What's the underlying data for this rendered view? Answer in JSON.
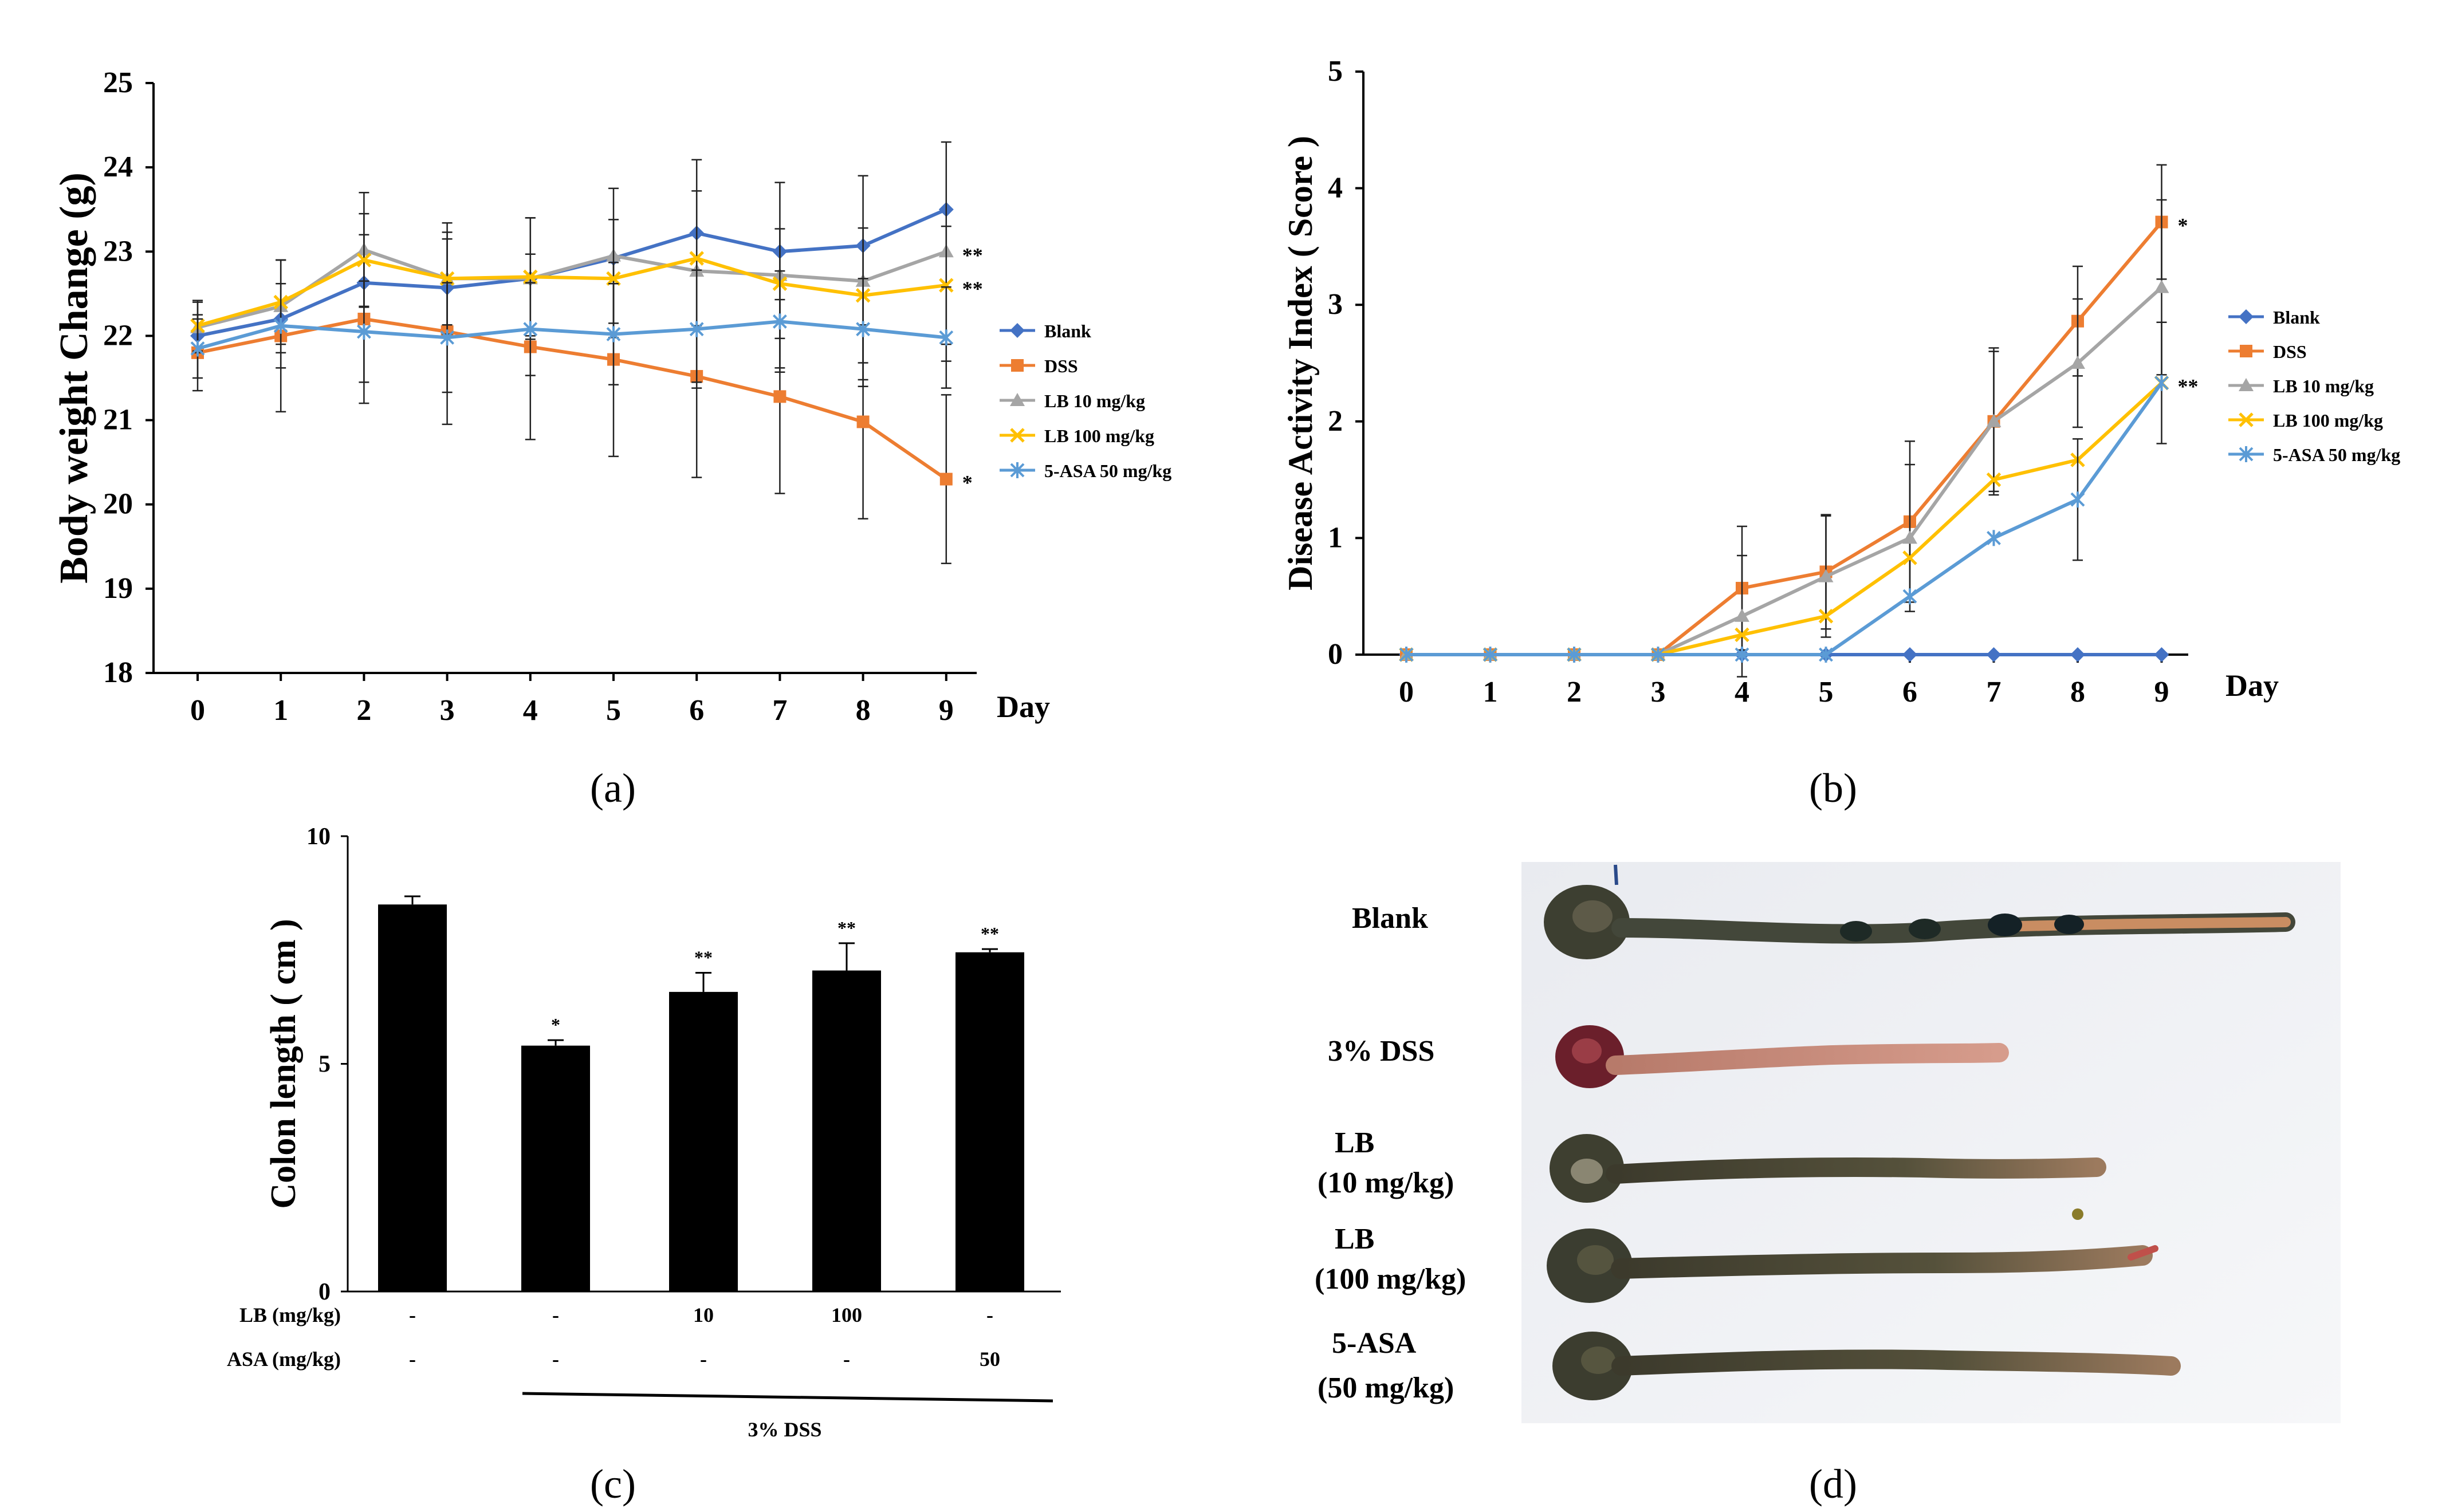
{
  "chart_data": [
    {
      "panel": "a",
      "type": "line",
      "panel_label": "(a)",
      "ylabel": "Body weight Change (g)",
      "xlabel": "Day",
      "ylim": [
        18,
        25
      ],
      "yticks": [
        18,
        19,
        20,
        21,
        22,
        23,
        24,
        25
      ],
      "x": [
        0,
        1,
        2,
        3,
        4,
        5,
        6,
        7,
        8,
        9
      ],
      "series": [
        {
          "name": "Blank",
          "color": "#4472C4",
          "marker": "diamond",
          "values": [
            22.0,
            22.2,
            22.63,
            22.57,
            22.68,
            22.92,
            23.22,
            23.0,
            23.07,
            23.5
          ],
          "errors": [
            0,
            0,
            0,
            0,
            0,
            0,
            0,
            0,
            0,
            0
          ]
        },
        {
          "name": "DSS",
          "color": "#ED7D31",
          "marker": "square",
          "values": [
            21.8,
            22.0,
            22.2,
            22.05,
            21.87,
            21.72,
            21.52,
            21.28,
            20.98,
            20.3
          ],
          "errors": [
            0.45,
            0.9,
            1.0,
            1.1,
            1.1,
            1.15,
            1.2,
            1.15,
            1.15,
            1.0
          ]
        },
        {
          "name": "LB 10 mg/kg",
          "color": "#A5A5A5",
          "marker": "triangle",
          "values": [
            22.1,
            22.35,
            23.02,
            22.68,
            22.68,
            22.95,
            22.77,
            22.72,
            22.65,
            23.0
          ],
          "errors": [
            0.3,
            0.55,
            0.68,
            0.66,
            0.72,
            0.8,
            1.32,
            1.1,
            1.25,
            1.3
          ]
        },
        {
          "name": "LB 100 mg/kg",
          "color": "#FFC000",
          "marker": "x",
          "values": [
            22.12,
            22.4,
            22.9,
            22.68,
            22.7,
            22.68,
            22.92,
            22.62,
            22.48,
            22.6
          ],
          "errors": [
            0.3,
            0.5,
            0.55,
            0.55,
            0.7,
            0.7,
            0.8,
            0.65,
            0.8,
            0.7
          ]
        },
        {
          "name": "5-ASA 50 mg/kg",
          "color": "#5B9BD5",
          "marker": "star",
          "values": [
            21.85,
            22.12,
            22.05,
            21.98,
            22.08,
            22.02,
            22.08,
            22.17,
            22.08,
            21.98
          ],
          "errors": [
            0.35,
            0.5,
            0.6,
            0.65,
            0.55,
            0.6,
            0.7,
            0.6,
            0.6,
            0.6
          ]
        }
      ],
      "annotations": [
        {
          "text": "**",
          "series": "LB 10 mg/kg"
        },
        {
          "text": "**",
          "series": "LB 100 mg/kg"
        },
        {
          "text": "*",
          "series": "DSS"
        }
      ],
      "legend": [
        "Blank",
        "DSS",
        "LB 10 mg/kg",
        "LB 100 mg/kg",
        "5-ASA 50 mg/kg"
      ],
      "legend_position": "right"
    },
    {
      "panel": "b",
      "type": "line",
      "panel_label": "(b)",
      "ylabel": "Disease Activity Index ( Score )",
      "xlabel": "Day",
      "ylim": [
        0,
        5
      ],
      "yticks": [
        0,
        1,
        2,
        3,
        4,
        5
      ],
      "x": [
        0,
        1,
        2,
        3,
        4,
        5,
        6,
        7,
        8,
        9
      ],
      "series": [
        {
          "name": "Blank",
          "color": "#4472C4",
          "marker": "diamond",
          "values": [
            0,
            0,
            0,
            0,
            0,
            0,
            0,
            0,
            0,
            0
          ],
          "errors": [
            0,
            0,
            0,
            0,
            0,
            0,
            0,
            0,
            0,
            0
          ]
        },
        {
          "name": "DSS",
          "color": "#ED7D31",
          "marker": "square",
          "values": [
            0,
            0,
            0,
            0,
            0.57,
            0.71,
            1.14,
            2.0,
            2.86,
            3.71
          ],
          "errors": [
            0,
            0,
            0,
            0,
            0.53,
            0.49,
            0.69,
            0.63,
            0.47,
            0.49
          ]
        },
        {
          "name": "LB 10 mg/kg",
          "color": "#A5A5A5",
          "marker": "triangle",
          "values": [
            0,
            0,
            0,
            0,
            0.33,
            0.67,
            1.0,
            2.0,
            2.5,
            3.15
          ],
          "errors": [
            0,
            0,
            0,
            0,
            0.52,
            0.52,
            0.63,
            0.6,
            0.55,
            0.75
          ]
        },
        {
          "name": "LB 100 mg/kg",
          "color": "#FFC000",
          "marker": "x",
          "values": [
            0,
            0,
            0,
            0,
            0.17,
            0.33,
            0.83,
            1.5,
            1.67,
            2.33
          ],
          "errors": [
            0,
            0,
            0,
            0,
            0,
            0,
            0,
            0,
            0,
            0
          ]
        },
        {
          "name": "5-ASA 50 mg/kg",
          "color": "#5B9BD5",
          "marker": "star",
          "values": [
            0,
            0,
            0,
            0,
            0,
            0,
            0.5,
            1.0,
            1.33,
            2.33
          ],
          "errors": [
            0,
            0,
            0,
            0,
            0,
            0,
            0,
            0,
            0.52,
            0.52
          ]
        }
      ],
      "annotations": [
        {
          "text": "*",
          "series": "DSS"
        },
        {
          "text": "**",
          "series": "5-ASA 50 mg/kg"
        }
      ],
      "legend": [
        "Blank",
        "DSS",
        "LB 10 mg/kg",
        "LB 100 mg/kg",
        "5-ASA 50 mg/kg"
      ],
      "legend_position": "right"
    },
    {
      "panel": "c",
      "type": "bar",
      "panel_label": "(c)",
      "ylabel": "Colon length ( cm )",
      "ylim": [
        0,
        10
      ],
      "yticks": [
        0,
        5,
        10
      ],
      "values": [
        8.5,
        5.4,
        6.58,
        7.05,
        7.45
      ],
      "errors": [
        0.18,
        0.12,
        0.42,
        0.6,
        0.07
      ],
      "significance": [
        "",
        "*",
        "**",
        "**",
        "**"
      ],
      "bar_color": "#000000",
      "row_labels": [
        "LB (mg/kg)",
        "ASA (mg/kg)"
      ],
      "rows": [
        [
          "-",
          "-",
          "10",
          "100",
          "-"
        ],
        [
          "-",
          "-",
          "-",
          "-",
          "50"
        ]
      ],
      "group_label": "3% DSS"
    }
  ],
  "photo": {
    "panel_label": "(d)",
    "labels": [
      {
        "lines": [
          "Blank"
        ]
      },
      {
        "lines": [
          "3% DSS"
        ]
      },
      {
        "lines": [
          "LB",
          "(10 mg/kg)"
        ]
      },
      {
        "lines": [
          "LB",
          "(100 mg/kg)"
        ]
      },
      {
        "lines": [
          "5-ASA",
          "(50 mg/kg)"
        ]
      }
    ]
  }
}
